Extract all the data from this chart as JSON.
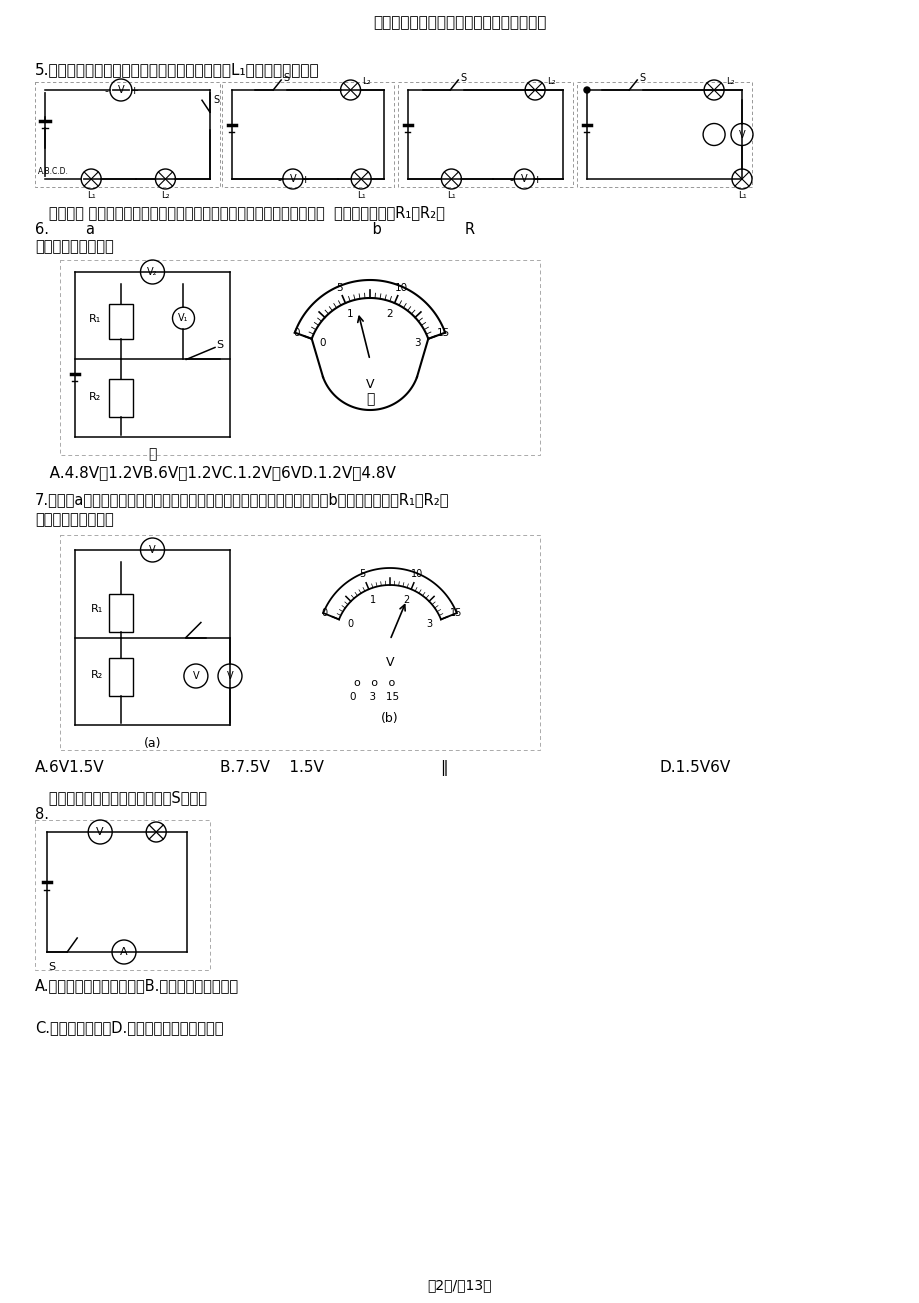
{
  "title": "沪科版九年级物理第十四章第五节测量电压",
  "page_footer": "第2页/共13页",
  "bg_color": "#ffffff",
  "q5_text": "5.以以下图的电路图中，能用电压表正确测出灯L₁两头电压的是（）",
  "q6_intro": "   在如图（ ）所示电路中，当闭合开关后，两个电压表指针偏转均为图（  ）所示，则电阻R₁和R₂两",
  "q6_num": "6.        a                                                            b                  R",
  "q6_end": "端的电压分别为（）",
  "q6_ans": "   A.4.8V，1.2VB.6V，1.2VC.1.2V，6VD.1.2V，4.8V",
  "q7_intro": "7.如图（a）所示电路中，当闭合开关后，两只电压表的指针偏转均如图（b）所示，则电阻R₁和R₂两",
  "q7_end": "端的电压分别为（）",
  "q7_A": "A.6V1.5V",
  "q7_B": "B.7.5V    1.5V",
  "q7_C": "‖",
  "q7_D": "D.1.5V6V",
  "q8_intro": "   在以以下图的电路中，闭合开关S后（）",
  "q8_num": "8.",
  "q8_A": "A.电压表的示数为电源电压B.电流表的示数特别大",
  "q8_C": "C.小灯泡正常发光D.电流表、电压表都被烧坏"
}
